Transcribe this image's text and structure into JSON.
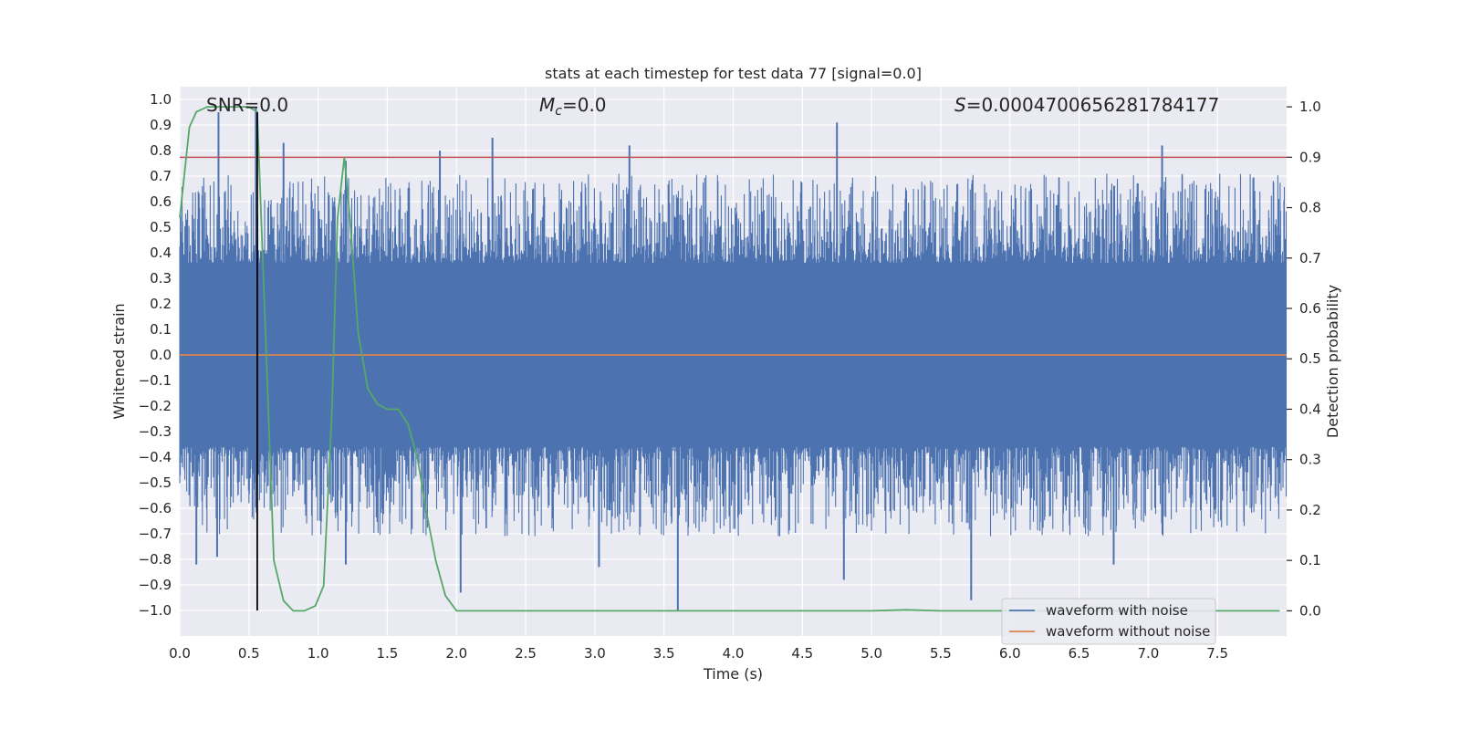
{
  "chart_data": {
    "type": "line",
    "title": "stats at each timestep for test data 77 [signal=0.0]",
    "xlabel": "Time (s)",
    "ylabel": "Whitened strain",
    "y2label": "Detection probability",
    "xlim": [
      0.0,
      8.0
    ],
    "ylim": [
      -1.1,
      1.05
    ],
    "y2lim": [
      -0.05,
      1.04
    ],
    "xticks": [
      0.0,
      0.5,
      1.0,
      1.5,
      2.0,
      2.5,
      3.0,
      3.5,
      4.0,
      4.5,
      5.0,
      5.5,
      6.0,
      6.5,
      7.0,
      7.5
    ],
    "xtick_labels": [
      "0.0",
      "0.5",
      "1.0",
      "1.5",
      "2.0",
      "2.5",
      "3.0",
      "3.5",
      "4.0",
      "4.5",
      "5.0",
      "5.5",
      "6.0",
      "6.5",
      "7.0",
      "7.5"
    ],
    "yticks": [
      -1.0,
      -0.9,
      -0.8,
      -0.7,
      -0.6,
      -0.5,
      -0.4,
      -0.3,
      -0.2,
      -0.1,
      0.0,
      0.1,
      0.2,
      0.3,
      0.4,
      0.5,
      0.6,
      0.7,
      0.8,
      0.9,
      1.0
    ],
    "ytick_labels": [
      "−1.0",
      "−0.9",
      "−0.8",
      "−0.7",
      "−0.6",
      "−0.5",
      "−0.4",
      "−0.3",
      "−0.2",
      "−0.1",
      "0.0",
      "0.1",
      "0.2",
      "0.3",
      "0.4",
      "0.5",
      "0.6",
      "0.7",
      "0.8",
      "0.9",
      "1.0"
    ],
    "y2ticks": [
      0.0,
      0.1,
      0.2,
      0.3,
      0.4,
      0.5,
      0.6,
      0.7,
      0.8,
      0.9,
      1.0
    ],
    "y2tick_labels": [
      "0.0",
      "0.1",
      "0.2",
      "0.3",
      "0.4",
      "0.5",
      "0.6",
      "0.7",
      "0.8",
      "0.9",
      "1.0"
    ],
    "annotations": {
      "snr": "SNR=0.0",
      "mc_symbol": "M",
      "mc_subscript": "c",
      "mc_value": "=0.0",
      "s_symbol": "S",
      "s_value": "=0.0004700656281784177"
    },
    "threshold": {
      "value": 0.9,
      "axis": "right",
      "color": "#c44e52"
    },
    "marker_line": {
      "x": 0.56,
      "y_from": -1.0,
      "y_to": 0.95,
      "color": "#000000"
    },
    "series": [
      {
        "name": "waveform with noise",
        "color": "#4c72b0",
        "kind": "noise",
        "band_amplitude": 0.36,
        "peaks": [
          {
            "x": 0.28,
            "y": 0.95
          },
          {
            "x": 0.55,
            "y": 0.97
          },
          {
            "x": 0.75,
            "y": 0.83
          },
          {
            "x": 1.2,
            "y": 0.76
          },
          {
            "x": 1.88,
            "y": 0.8
          },
          {
            "x": 2.26,
            "y": 0.85
          },
          {
            "x": 3.25,
            "y": 0.82
          },
          {
            "x": 4.75,
            "y": 0.91
          },
          {
            "x": 7.1,
            "y": 0.82
          },
          {
            "x": 0.12,
            "y": -0.82
          },
          {
            "x": 0.27,
            "y": -0.79
          },
          {
            "x": 1.2,
            "y": -0.82
          },
          {
            "x": 2.03,
            "y": -0.93
          },
          {
            "x": 3.6,
            "y": -1.0
          },
          {
            "x": 4.8,
            "y": -0.88
          },
          {
            "x": 5.72,
            "y": -0.96
          },
          {
            "x": 6.75,
            "y": -0.82
          },
          {
            "x": 3.03,
            "y": -0.83
          }
        ]
      },
      {
        "name": "waveform without noise",
        "color": "#dd8452",
        "axis": "left",
        "x": [
          0.0,
          8.0
        ],
        "y": [
          0.0,
          0.0
        ]
      },
      {
        "name": "detection probability",
        "color": "#55a868",
        "axis": "right",
        "x": [
          0.0,
          0.07,
          0.12,
          0.2,
          0.3,
          0.4,
          0.5,
          0.56,
          0.62,
          0.68,
          0.75,
          0.82,
          0.9,
          0.98,
          1.04,
          1.1,
          1.14,
          1.19,
          1.23,
          1.29,
          1.36,
          1.43,
          1.5,
          1.58,
          1.65,
          1.72,
          1.78,
          1.85,
          1.92,
          2.0,
          2.5,
          3.0,
          4.0,
          5.0,
          5.25,
          5.5,
          6.0,
          7.0,
          7.95
        ],
        "y": [
          0.78,
          0.96,
          0.99,
          1.0,
          1.0,
          1.0,
          1.0,
          0.99,
          0.55,
          0.1,
          0.02,
          0.0,
          0.0,
          0.01,
          0.05,
          0.4,
          0.78,
          0.9,
          0.78,
          0.55,
          0.44,
          0.41,
          0.4,
          0.4,
          0.37,
          0.3,
          0.2,
          0.1,
          0.03,
          0.0,
          0.0,
          0.0,
          0.0,
          0.0,
          0.002,
          0.0,
          0.0,
          0.0,
          0.0
        ]
      }
    ],
    "legend": {
      "position": "lower-right",
      "entries": [
        {
          "label": "waveform with noise",
          "color": "#4c72b0"
        },
        {
          "label": "waveform without noise",
          "color": "#dd8452"
        }
      ]
    }
  }
}
